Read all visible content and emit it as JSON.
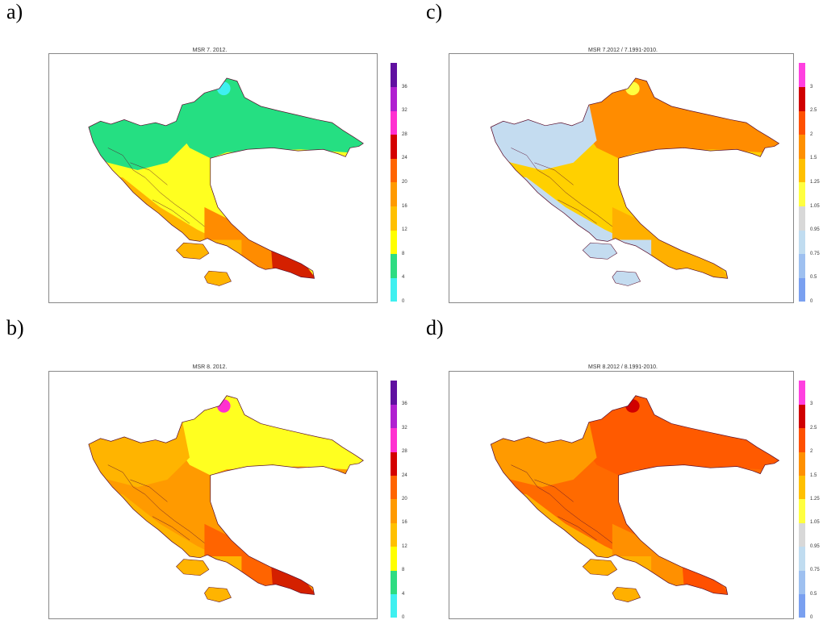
{
  "panels": [
    {
      "id": "a",
      "label": "a)",
      "title": "MSR  7. 2012.",
      "legend": {
        "ticks": [
          "0",
          "4",
          "8",
          "12",
          "16",
          "20",
          "24",
          "28",
          "32",
          "36"
        ],
        "colors": [
          "#3ff0f0",
          "#2edc82",
          "#ffff00",
          "#ffc000",
          "#ff9a00",
          "#ff6400",
          "#d40000",
          "#ff30d0",
          "#b020d0",
          "#6010a0"
        ]
      },
      "fill_colors": {
        "north": "#25df82",
        "west": "#25df82",
        "central": "#ffff20",
        "south": "#ffb400",
        "southeast": "#ff8c00",
        "tip": "#d42000",
        "islands": "#ffb400",
        "spot": "#3ff0f0"
      }
    },
    {
      "id": "b",
      "label": "b)",
      "title": "MSR  8. 2012.",
      "legend": {
        "ticks": [
          "0",
          "4",
          "8",
          "12",
          "16",
          "20",
          "24",
          "28",
          "32",
          "36"
        ],
        "colors": [
          "#3ff0f0",
          "#2edc82",
          "#ffff00",
          "#ffc000",
          "#ff9a00",
          "#ff6400",
          "#d40000",
          "#ff30d0",
          "#b020d0",
          "#6010a0"
        ]
      },
      "fill_colors": {
        "north": "#ffff20",
        "west": "#ffb400",
        "central": "#ff9a00",
        "south": "#ffb400",
        "southeast": "#ff6400",
        "tip": "#d42000",
        "islands": "#ffb400",
        "spot": "#ff30d0"
      }
    },
    {
      "id": "c",
      "label": "c)",
      "title": "MSR  7.2012 / 7.1991-2010.",
      "legend": {
        "ticks": [
          "0",
          "0.5",
          "0.75",
          "0.95",
          "1.05",
          "1.25",
          "1.5",
          "2",
          "2.5",
          "3"
        ],
        "colors": [
          "#7aa0f0",
          "#9ec0f0",
          "#c0dcf0",
          "#d8d8d8",
          "#ffff40",
          "#ffc000",
          "#ff9000",
          "#ff5000",
          "#d00000",
          "#ff40e0"
        ]
      },
      "fill_colors": {
        "north": "#ff8c00",
        "west": "#c4dcf0",
        "central": "#ffd000",
        "south": "#c4dcf0",
        "southeast": "#ffb000",
        "tip": "#ffb000",
        "islands": "#c4dcf0",
        "spot": "#ffff40"
      }
    },
    {
      "id": "d",
      "label": "d)",
      "title": "MSR  8.2012 / 8.1991-2010.",
      "legend": {
        "ticks": [
          "0",
          "0.5",
          "0.75",
          "0.95",
          "1.05",
          "1.25",
          "1.5",
          "2",
          "2.5",
          "3"
        ],
        "colors": [
          "#7aa0f0",
          "#9ec0f0",
          "#c0dcf0",
          "#d8d8d8",
          "#ffff40",
          "#ffc000",
          "#ff9000",
          "#ff5000",
          "#d00000",
          "#ff40e0"
        ]
      },
      "fill_colors": {
        "north": "#ff5a00",
        "west": "#ff9a00",
        "central": "#ff6a00",
        "south": "#ffb000",
        "southeast": "#ff9000",
        "tip": "#ff5000",
        "islands": "#ffb000",
        "spot": "#d00000"
      }
    }
  ]
}
